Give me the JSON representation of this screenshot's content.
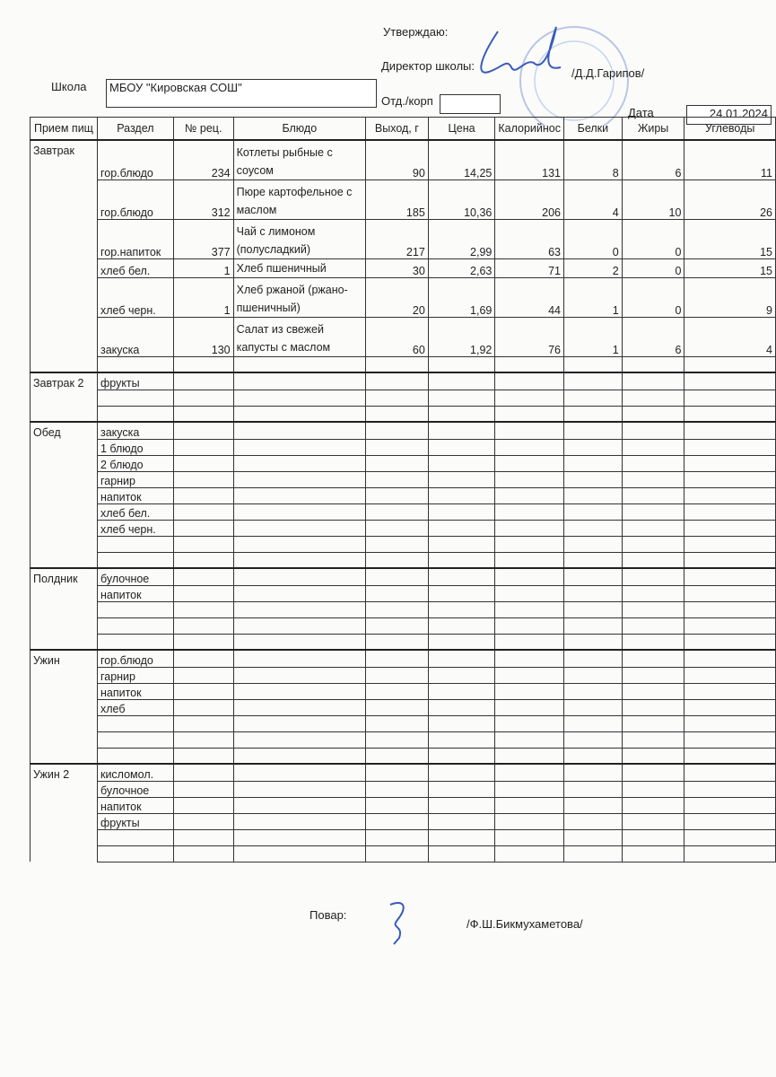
{
  "header": {
    "approve": "Утверждаю:",
    "director_label": "Директор школы:",
    "director_name": "/Д.Д.Гарипов/",
    "school_label": "Школа",
    "school_value": "МБОУ \"Кировская СОШ\"",
    "dept_label": "Отд./корп",
    "dept_value": "",
    "date_label": "Дата",
    "date_value": "24.01.2024"
  },
  "columns": [
    "Прием пищ",
    "Раздел",
    "№ рец.",
    "Блюдо",
    "Выход, г",
    "Цена",
    "Калорийнос",
    "Белки",
    "Жиры",
    "Углеводы"
  ],
  "meals": [
    {
      "name": "Завтрак",
      "rows": [
        {
          "section": "гор.блюдо",
          "recipe": "234",
          "dish": "Котлеты рыбные с соусом",
          "yield": "90",
          "price": "14,25",
          "kcal": "131",
          "protein": "8",
          "fat": "6",
          "carbs": "11"
        },
        {
          "section": "гор.блюдо",
          "recipe": "312",
          "dish": "Пюре картофельное с маслом",
          "yield": "185",
          "price": "10,36",
          "kcal": "206",
          "protein": "4",
          "fat": "10",
          "carbs": "26"
        },
        {
          "section": "гор.напиток",
          "recipe": "377",
          "dish": "Чай с лимоном (полусладкий)",
          "yield": "217",
          "price": "2,99",
          "kcal": "63",
          "protein": "0",
          "fat": "0",
          "carbs": "15"
        },
        {
          "section": "хлеб бел.",
          "recipe": "1",
          "dish": "Хлеб пшеничный",
          "yield": "30",
          "price": "2,63",
          "kcal": "71",
          "protein": "2",
          "fat": "0",
          "carbs": "15"
        },
        {
          "section": "хлеб черн.",
          "recipe": "1",
          "dish": "Хлеб ржаной (ржано-пшеничный)",
          "yield": "20",
          "price": "1,69",
          "kcal": "44",
          "protein": "1",
          "fat": "0",
          "carbs": "9"
        },
        {
          "section": "закуска",
          "recipe": "130",
          "dish": "Салат из свежей капусты с маслом",
          "yield": "60",
          "price": "1,92",
          "kcal": "76",
          "protein": "1",
          "fat": "6",
          "carbs": "4"
        },
        {
          "section": ""
        }
      ]
    },
    {
      "name": "Завтрак 2",
      "rows": [
        {
          "section": "фрукты"
        },
        {
          "section": ""
        },
        {
          "section": ""
        }
      ]
    },
    {
      "name": "Обед",
      "rows": [
        {
          "section": "закуска"
        },
        {
          "section": "1 блюдо"
        },
        {
          "section": "2 блюдо"
        },
        {
          "section": "гарнир"
        },
        {
          "section": "напиток"
        },
        {
          "section": "хлеб бел."
        },
        {
          "section": "хлеб черн."
        },
        {
          "section": ""
        },
        {
          "section": ""
        }
      ]
    },
    {
      "name": "Полдник",
      "rows": [
        {
          "section": "булочное"
        },
        {
          "section": "напиток"
        },
        {
          "section": ""
        },
        {
          "section": ""
        },
        {
          "section": ""
        }
      ]
    },
    {
      "name": "Ужин",
      "rows": [
        {
          "section": "гор.блюдо"
        },
        {
          "section": "гарнир"
        },
        {
          "section": "напиток"
        },
        {
          "section": "хлеб"
        },
        {
          "section": ""
        },
        {
          "section": ""
        },
        {
          "section": ""
        }
      ]
    },
    {
      "name": "Ужин 2",
      "rows": [
        {
          "section": "кисломол."
        },
        {
          "section": "булочное"
        },
        {
          "section": "напиток"
        },
        {
          "section": "фрукты"
        },
        {
          "section": ""
        },
        {
          "section": ""
        }
      ]
    }
  ],
  "footer": {
    "cook_label": "Повар:",
    "cook_name": "/Ф.Ш.Бикмухаметова/"
  },
  "colors": {
    "ink": "#222222",
    "signature": "#3a5bb8",
    "stamp": "#9fb3dd"
  }
}
